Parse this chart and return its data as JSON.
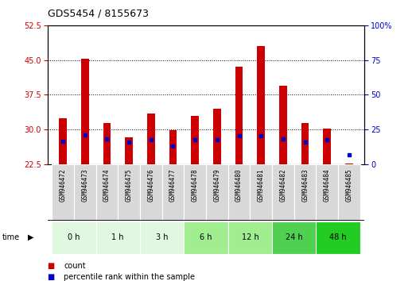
{
  "title": "GDS5454 / 8155673",
  "samples": [
    "GSM946472",
    "GSM946473",
    "GSM946474",
    "GSM946475",
    "GSM946476",
    "GSM946477",
    "GSM946478",
    "GSM946479",
    "GSM946480",
    "GSM946481",
    "GSM946482",
    "GSM946483",
    "GSM946484",
    "GSM946485"
  ],
  "count_values": [
    32.5,
    45.2,
    31.5,
    28.3,
    33.5,
    29.8,
    33.0,
    34.5,
    43.5,
    48.0,
    39.5,
    31.5,
    30.2,
    22.7
  ],
  "percentile_values_left_scale": [
    27.5,
    28.8,
    28.0,
    27.3,
    27.8,
    26.5,
    27.8,
    27.9,
    28.7,
    28.7,
    28.0,
    27.3,
    27.8,
    24.5
  ],
  "time_groups": [
    {
      "label": "0 h",
      "indices": [
        0,
        1
      ]
    },
    {
      "label": "1 h",
      "indices": [
        2,
        3
      ]
    },
    {
      "label": "3 h",
      "indices": [
        4,
        5
      ]
    },
    {
      "label": "6 h",
      "indices": [
        6,
        7
      ]
    },
    {
      "label": "12 h",
      "indices": [
        8,
        9
      ]
    },
    {
      "label": "24 h",
      "indices": [
        10,
        11
      ]
    },
    {
      "label": "48 h",
      "indices": [
        12,
        13
      ]
    }
  ],
  "time_group_colors": {
    "0 h": "#e0f8e0",
    "1 h": "#e0f8e0",
    "3 h": "#e0f8e0",
    "6 h": "#a0ee90",
    "12 h": "#a0ee90",
    "24 h": "#50d050",
    "48 h": "#22cc22"
  },
  "ylim_left": [
    22.5,
    52.5
  ],
  "ylim_right": [
    0,
    100
  ],
  "yticks_left": [
    22.5,
    30.0,
    37.5,
    45.0,
    52.5
  ],
  "yticks_right": [
    0,
    25,
    50,
    75,
    100
  ],
  "bar_color": "#cc0000",
  "dot_color": "#0000cc",
  "bar_width": 0.35,
  "bar_bottom": 22.5,
  "legend_count_label": "count",
  "legend_percentile_label": "percentile rank within the sample",
  "time_label": "time"
}
